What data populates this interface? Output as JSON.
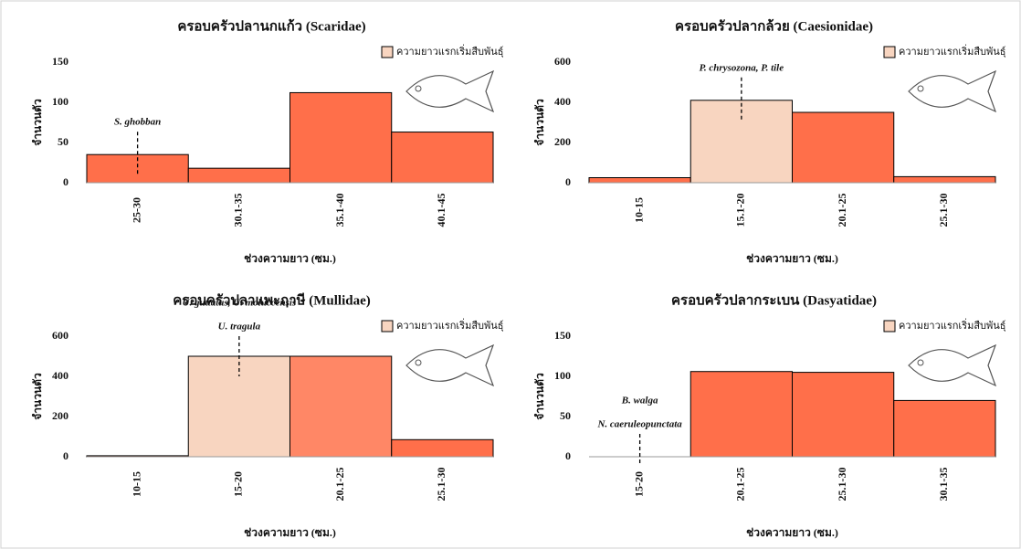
{
  "chart_data": [
    {
      "type": "bar",
      "title": "ครอบครัวปลานกแก้ว (Scaridae)",
      "ylabel": "จำนวนตัว",
      "xlabel": "ช่วงความยาว (ซม.)",
      "categories": [
        "25-30",
        "30.1-35",
        "35.1-40",
        "40.1-45"
      ],
      "values": [
        35,
        18,
        112,
        63
      ],
      "colors": [
        "#ff6f4a",
        "#ff6f4a",
        "#ff6f4a",
        "#ff6f4a"
      ],
      "ylim": [
        0,
        150
      ],
      "yticks": [
        0,
        50,
        100,
        150
      ],
      "legend": "ความยาวแรกเริ่มสืบพันธุ์",
      "legend_color": "#f8d5c0",
      "legend_position": "upper right",
      "annotations": [
        "S. ghobban"
      ],
      "annotation_at": "25-30"
    },
    {
      "type": "bar",
      "title": "ครอบครัวปลากล้วย (Caesionidae)",
      "ylabel": "จำนวนตัว",
      "xlabel": "ช่วงความยาว (ซม.)",
      "categories": [
        "10-15",
        "15.1-20",
        "20.1-25",
        "25.1-30"
      ],
      "values": [
        25,
        410,
        350,
        30
      ],
      "colors": [
        "#ff6f4a",
        "#f8d5c0",
        "#ff6f4a",
        "#ff6f4a"
      ],
      "ylim": [
        0,
        600
      ],
      "yticks": [
        0,
        200,
        400,
        600
      ],
      "legend": "ความยาวแรกเริ่มสืบพันธุ์",
      "legend_color": "#f8d5c0",
      "legend_position": "upper right",
      "annotations": [
        "P. chrysozona, P. tile"
      ],
      "annotation_at": "15.1-20"
    },
    {
      "type": "bar",
      "title": "ครอบครัวปลาแพะฤาษี (Mullidae)",
      "ylabel": "จำนวนตัว",
      "xlabel": "ช่วงความยาว (ซม.)",
      "categories": [
        "10-15",
        "15-20",
        "20.1-25",
        "25.1-30"
      ],
      "values": [
        5,
        500,
        500,
        85
      ],
      "colors": [
        "#ff6f4a",
        "#f8d5c0",
        "#ff8766",
        "#ff6f4a"
      ],
      "ylim": [
        0,
        600
      ],
      "yticks": [
        0,
        200,
        400,
        600
      ],
      "legend": "ความยาวแรกเริ่มสืบพันธุ์",
      "legend_color": "#f8d5c0",
      "legend_position": "upper right",
      "annotations": [
        "U. guttatus, U. moluccensis",
        "U. tragula"
      ],
      "annotation_at": "15-20"
    },
    {
      "type": "bar",
      "title": "ครอบครัวปลากระเบน (Dasyatidae)",
      "ylabel": "จำนวนตัว",
      "xlabel": "ช่วงความยาว (ซม.)",
      "categories": [
        "15-20",
        "20.1-25",
        "25.1-30",
        "30.1-35"
      ],
      "values": [
        0,
        106,
        105,
        70
      ],
      "colors": [
        "#ff6f4a",
        "#ff6f4a",
        "#ff6f4a",
        "#ff6f4a"
      ],
      "ylim": [
        0,
        150
      ],
      "yticks": [
        0,
        50,
        100,
        150
      ],
      "legend": "ความยาวแรกเริ่มสืบพันธุ์",
      "legend_color": "#f8d5c0",
      "legend_position": "upper right",
      "annotations": [
        "B. walga",
        "N. caeruleopunctata"
      ],
      "annotation_at": "15-20"
    }
  ]
}
